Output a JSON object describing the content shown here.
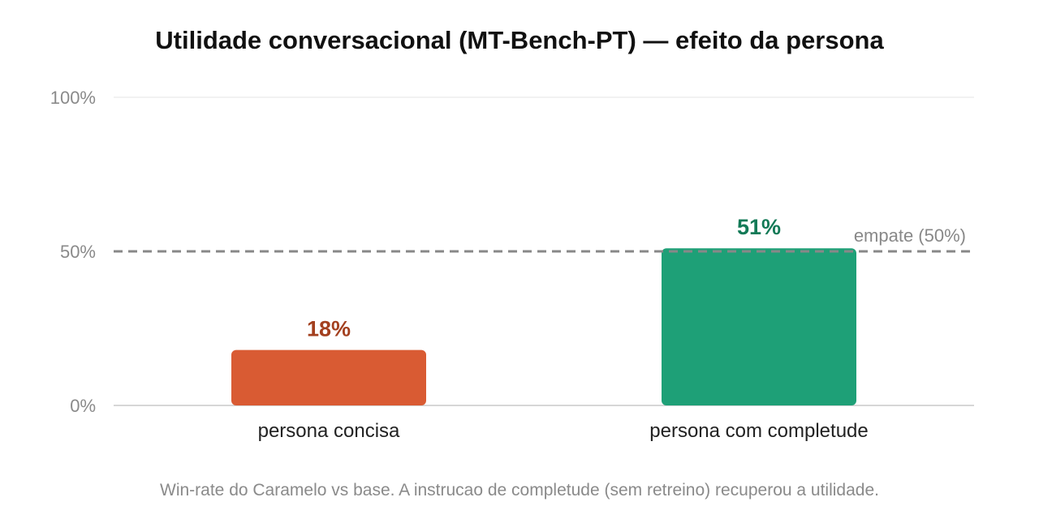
{
  "chart_data": {
    "type": "bar",
    "title": "Utilidade conversacional (MT-Bench-PT) — efeito da persona",
    "categories": [
      "persona concisa",
      "persona com completude"
    ],
    "values": [
      18,
      51
    ],
    "value_labels": [
      "18%",
      "51%"
    ],
    "bar_colors": [
      "#d95b33",
      "#1ea077"
    ],
    "value_label_colors": [
      "#a3401f",
      "#137a57"
    ],
    "ylim": [
      0,
      100
    ],
    "yticks": [
      0,
      50,
      100
    ],
    "ytick_labels": [
      "0%",
      "50%",
      "100%"
    ],
    "reference_line": {
      "value": 50,
      "label": "empate (50%)",
      "color": "#888888"
    },
    "caption": "Win-rate do Caramelo vs base. A instrucao de completude (sem retreino) recuperou a utilidade."
  }
}
